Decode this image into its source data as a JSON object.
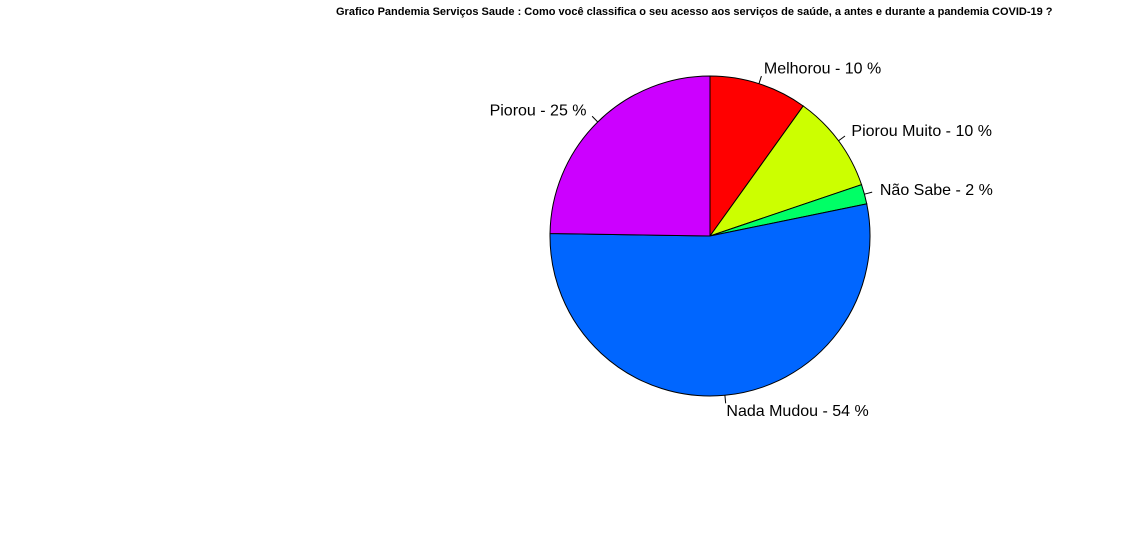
{
  "chart_data": {
    "type": "pie",
    "title": "Grafico Pandemia Serviços Saude : Como você classifica o seu acesso aos serviços de saúde, a antes e durante a pandemia COVID-19 ?",
    "start_angle_deg": 90,
    "direction": "clockwise",
    "slices": [
      {
        "name": "Melhorou",
        "percent": 10,
        "label": "Melhorou - 10 %",
        "color": "#FF0000"
      },
      {
        "name": "Piorou Muito",
        "percent": 10,
        "label": "Piorou Muito - 10 %",
        "color": "#CCFF00"
      },
      {
        "name": "Não Sabe",
        "percent": 2,
        "label": "Não Sabe - 2 %",
        "color": "#00FF66"
      },
      {
        "name": "Nada Mudou",
        "percent": 54,
        "label": "Nada Mudou - 54 %",
        "color": "#0066FF"
      },
      {
        "name": "Piorou",
        "percent": 25,
        "label": "Piorou - 25 %",
        "color": "#CC00FF"
      }
    ]
  }
}
